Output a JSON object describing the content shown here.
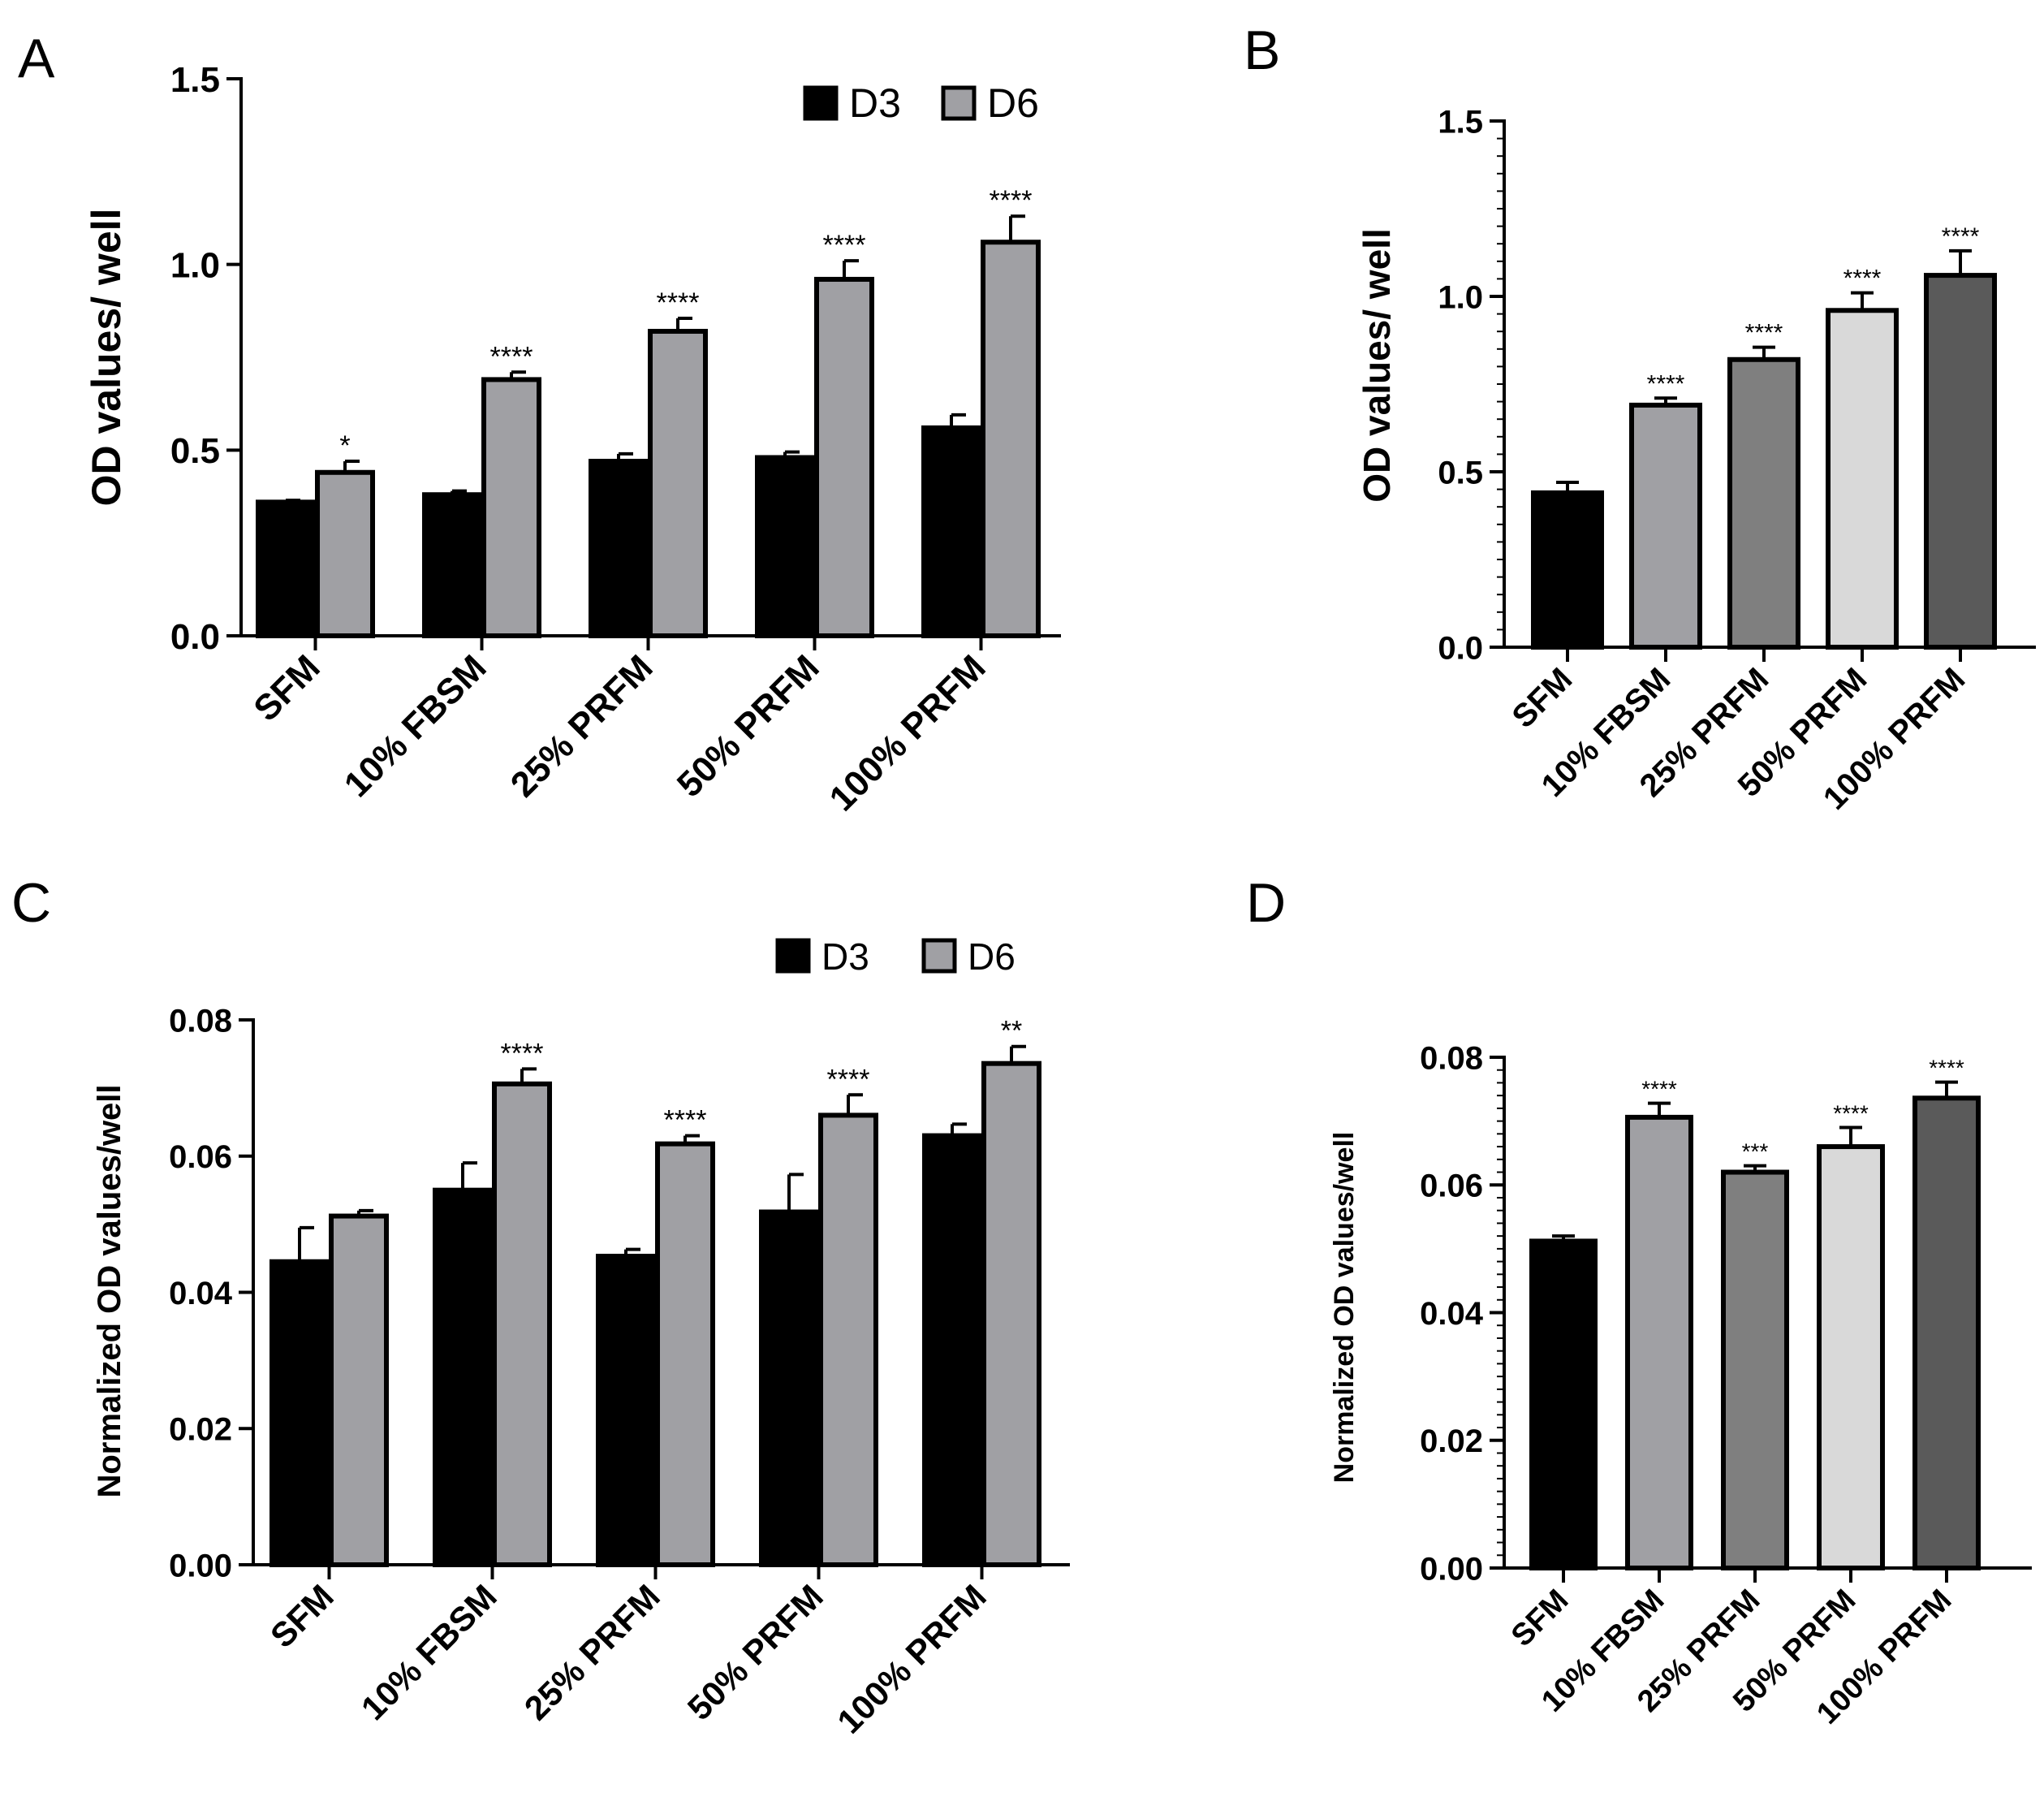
{
  "colors": {
    "axis": "#000000",
    "d3": "#000000",
    "d6": "#a0a0a4",
    "b_fills": [
      "#000000",
      "#a0a0a4",
      "#7f7f7f",
      "#d9d9d9",
      "#5a5a5a"
    ]
  },
  "chart_data": [
    {
      "panel": "A",
      "type": "bar",
      "ylabel": "OD values/ well",
      "ylim": [
        0,
        1.5
      ],
      "yticks": [
        "0.0",
        "0.5",
        "1.0",
        "1.5"
      ],
      "categories": [
        "SFM",
        "10% FBSM",
        "25% PRFM",
        "50% PRFM",
        "100% PRFM"
      ],
      "legend": [
        "D3",
        "D6"
      ],
      "series": [
        {
          "name": "D3",
          "values": [
            0.36,
            0.38,
            0.47,
            0.48,
            0.56
          ],
          "errors": [
            0.005,
            0.01,
            0.02,
            0.015,
            0.035
          ]
        },
        {
          "name": "D6",
          "values": [
            0.44,
            0.69,
            0.82,
            0.96,
            1.06
          ],
          "errors": [
            0.03,
            0.02,
            0.035,
            0.05,
            0.07
          ]
        }
      ],
      "significance": [
        "*",
        "****",
        "****",
        "****",
        "****"
      ]
    },
    {
      "panel": "B",
      "type": "bar",
      "ylabel": "OD values/ well",
      "ylim": [
        0,
        1.5
      ],
      "yticks": [
        "0.0",
        "0.5",
        "1.0",
        "1.5"
      ],
      "categories": [
        "SFM",
        "10% FBSM",
        "25% PRFM",
        "50% PRFM",
        "100% PRFM"
      ],
      "values": [
        0.44,
        0.69,
        0.82,
        0.96,
        1.06
      ],
      "errors": [
        0.03,
        0.02,
        0.035,
        0.05,
        0.07
      ],
      "significance": [
        "",
        "****",
        "****",
        "****",
        "****"
      ]
    },
    {
      "panel": "C",
      "type": "bar",
      "ylabel": "Normalized OD values/well",
      "ylim": [
        0,
        0.08
      ],
      "yticks": [
        "0.00",
        "0.02",
        "0.04",
        "0.06",
        "0.08"
      ],
      "categories": [
        "SFM",
        "10% FBSM",
        "25% PRFM",
        "50% PRFM",
        "100% PRFM"
      ],
      "legend": [
        "D3",
        "D6"
      ],
      "series": [
        {
          "name": "D3",
          "values": [
            0.0445,
            0.055,
            0.0453,
            0.0518,
            0.063
          ],
          "errors": [
            0.005,
            0.004,
            0.001,
            0.0055,
            0.0017
          ]
        },
        {
          "name": "D6",
          "values": [
            0.0512,
            0.0706,
            0.0618,
            0.066,
            0.0736
          ],
          "errors": [
            0.0008,
            0.0022,
            0.0012,
            0.003,
            0.0025
          ]
        }
      ],
      "significance": [
        "",
        "****",
        "****",
        "****",
        "**"
      ]
    },
    {
      "panel": "D",
      "type": "bar",
      "ylabel": "Normalized OD values/well",
      "ylim": [
        0,
        0.08
      ],
      "yticks": [
        "0.00",
        "0.02",
        "0.04",
        "0.06",
        "0.08"
      ],
      "categories": [
        "SFM",
        "10% FBSM",
        "25% PRFM",
        "50% PRFM",
        "100% PRFM"
      ],
      "values": [
        0.0512,
        0.0706,
        0.062,
        0.066,
        0.0736
      ],
      "errors": [
        0.0008,
        0.0022,
        0.001,
        0.003,
        0.0025
      ],
      "significance": [
        "",
        "****",
        "***",
        "****",
        "****"
      ]
    }
  ]
}
